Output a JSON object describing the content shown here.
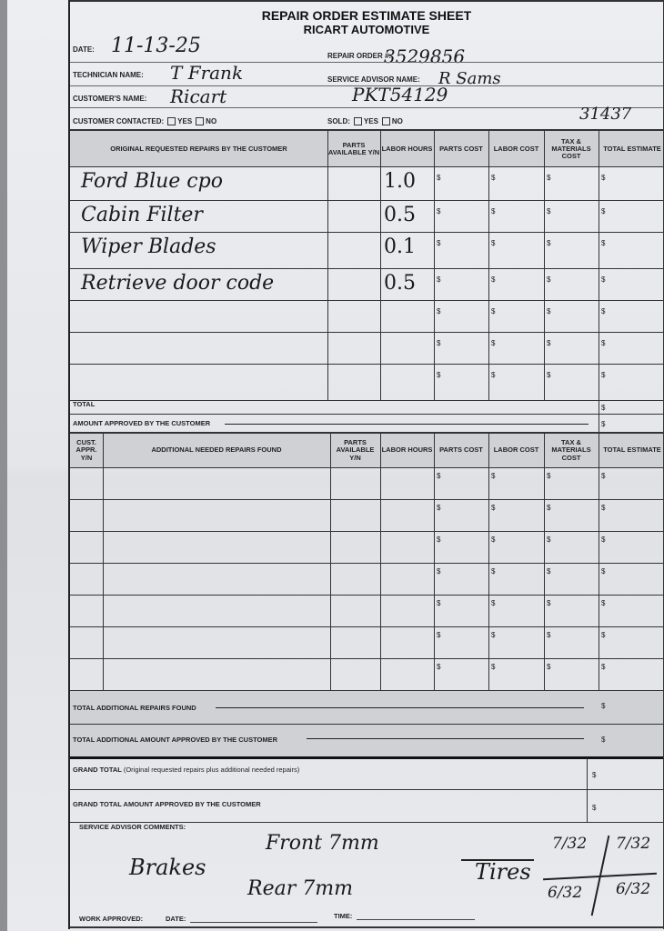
{
  "form": {
    "title": "REPAIR ORDER ESTIMATE SHEET",
    "company": "RICART AUTOMOTIVE",
    "labels": {
      "date": "DATE:",
      "repair_order": "REPAIR ORDER #:",
      "technician": "TECHNICIAN NAME:",
      "service_advisor": "SERVICE ADVISOR NAME:",
      "customer": "CUSTOMER'S NAME:",
      "customer_contacted": "CUSTOMER CONTACTED:",
      "sold": "SOLD:",
      "yes": "YES",
      "no": "NO"
    },
    "values": {
      "date": "11-13-25",
      "repair_order": "3529856",
      "technician": "T Frank",
      "service_advisor": "R Sams",
      "customer": "Ricart",
      "vehicle_code": "PKT54129",
      "mileage": "31437"
    }
  },
  "table1": {
    "headers": [
      "ORIGINAL REQUESTED REPAIRS BY THE CUSTOMER",
      "PARTS AVAILABLE Y/N",
      "LABOR HOURS",
      "PARTS COST",
      "LABOR COST",
      "TAX & MATERIALS COST",
      "TOTAL ESTIMATE"
    ],
    "rows": [
      {
        "repair": "Ford Blue cpo",
        "hours": "1.0"
      },
      {
        "repair": "Cabin Filter",
        "hours": "0.5"
      },
      {
        "repair": "Wiper Blades",
        "hours": "0.1"
      },
      {
        "repair": "Retrieve door code",
        "hours": "0.5"
      },
      {
        "repair": "",
        "hours": ""
      },
      {
        "repair": "",
        "hours": ""
      },
      {
        "repair": "",
        "hours": ""
      }
    ],
    "currency": "$",
    "total_label": "TOTAL",
    "approved_label": "AMOUNT APPROVED BY THE CUSTOMER"
  },
  "table2": {
    "headers": [
      "CUST. APPR. Y/N",
      "ADDITIONAL NEEDED REPAIRS FOUND",
      "PARTS AVAILABLE Y/N",
      "LABOR HOURS",
      "PARTS COST",
      "LABOR COST",
      "TAX & MATERIALS COST",
      "TOTAL ESTIMATE"
    ],
    "row_count": 7,
    "total_label": "TOTAL ADDITIONAL REPAIRS FOUND",
    "approved_label": "TOTAL ADDITIONAL AMOUNT APPROVED BY THE CUSTOMER"
  },
  "grand": {
    "total_label": "GRAND TOTAL",
    "total_note": "(Original requested repairs plus additional needed repairs)",
    "approved_label": "GRAND TOTAL AMOUNT APPROVED BY THE CUSTOMER"
  },
  "comments": {
    "label": "SERVICE ADVISOR COMMENTS:",
    "brakes": "Brakes",
    "front": "Front 7mm",
    "rear": "Rear 7mm",
    "tires": "Tires",
    "tire_front_left": "7/32",
    "tire_front_right": "7/32",
    "tire_rear_left": "6/32",
    "tire_rear_right": "6/32"
  },
  "footer": {
    "work_approved": "WORK APPROVED:",
    "date": "DATE:",
    "time": "TIME:"
  }
}
